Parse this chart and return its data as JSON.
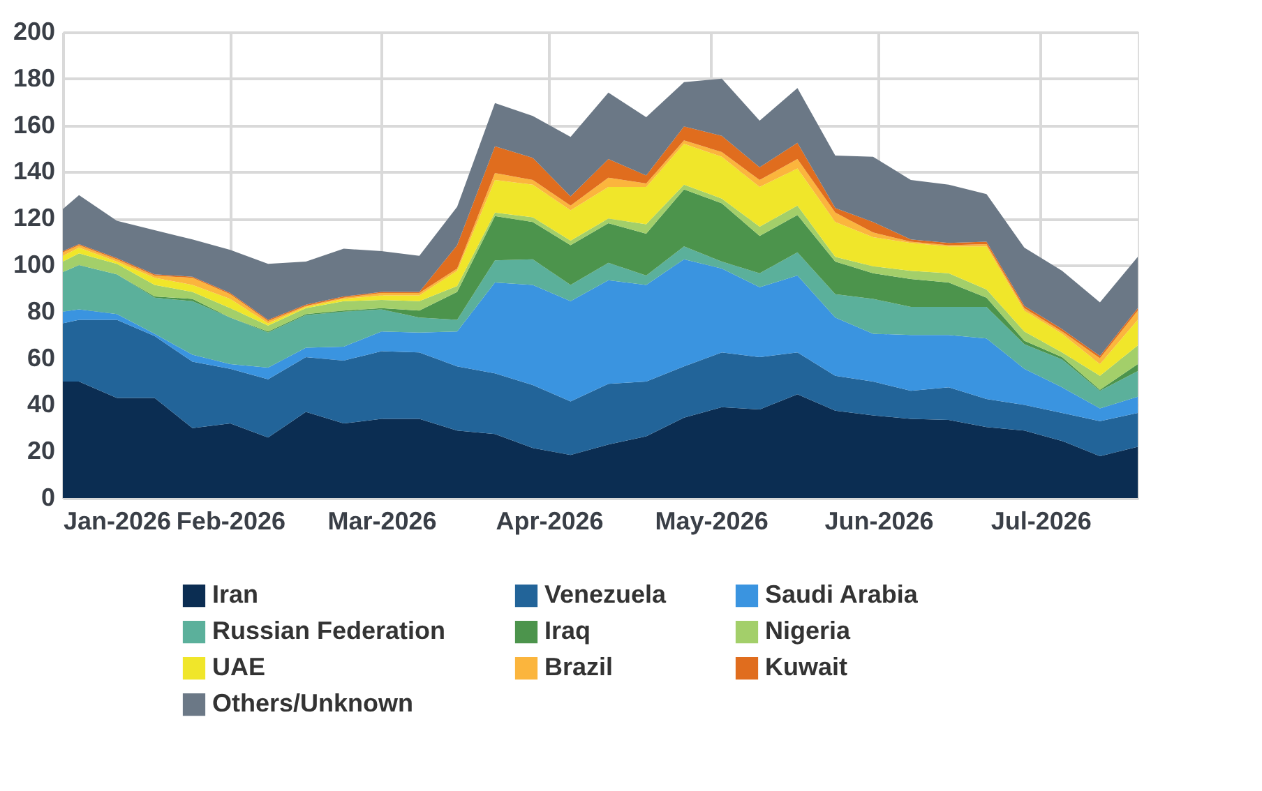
{
  "chart_data": {
    "type": "area",
    "stacked": true,
    "grid": true,
    "legend": "bottom",
    "x": [
      "2026-01-01",
      "2026-01-04",
      "2026-01-11",
      "2026-01-18",
      "2026-01-25",
      "2026-02-01",
      "2026-02-08",
      "2026-02-15",
      "2026-02-22",
      "2026-03-01",
      "2026-03-08",
      "2026-03-15",
      "2026-03-22",
      "2026-03-29",
      "2026-04-05",
      "2026-04-12",
      "2026-04-19",
      "2026-04-26",
      "2026-05-03",
      "2026-05-10",
      "2026-05-17",
      "2026-05-24",
      "2026-05-31",
      "2026-06-07",
      "2026-06-14",
      "2026-06-21",
      "2026-06-28",
      "2026-07-05",
      "2026-07-12",
      "2026-07-19"
    ],
    "xlim": [
      "2026-01-01",
      "2026-07-19"
    ],
    "xticks": [
      {
        "value": "2026-01-01",
        "label": "Jan-2026"
      },
      {
        "value": "2026-02-01",
        "label": "Feb-2026"
      },
      {
        "value": "2026-03-01",
        "label": "Mar-2026"
      },
      {
        "value": "2026-04-01",
        "label": "Apr-2026"
      },
      {
        "value": "2026-05-01",
        "label": "May-2026"
      },
      {
        "value": "2026-06-01",
        "label": "Jun-2026"
      },
      {
        "value": "2026-07-01",
        "label": "Jul-2026"
      }
    ],
    "ylim": [
      0,
      200
    ],
    "yticks": [
      0,
      20,
      40,
      60,
      80,
      100,
      120,
      140,
      160,
      180,
      200
    ],
    "series": [
      {
        "name": "Iran",
        "color": "#0b2d52",
        "values": [
          50,
          50,
          43,
          43,
          30,
          32,
          26,
          37,
          32,
          34,
          34,
          29,
          27.5,
          21.5,
          18.5,
          23,
          26.5,
          34.5,
          39,
          38,
          44.5,
          37.5,
          35.5,
          34,
          33.5,
          30.5,
          29,
          24.5,
          18,
          22
        ]
      },
      {
        "name": "Venezuela",
        "color": "#226499",
        "values": [
          25,
          26.5,
          33.5,
          26.5,
          28.5,
          23.5,
          25,
          23.5,
          27,
          29,
          28.5,
          27.5,
          26,
          27,
          23,
          26,
          23.5,
          22,
          23.5,
          22.5,
          18,
          15,
          14.5,
          12,
          14,
          12,
          11,
          12,
          15,
          14.5
        ]
      },
      {
        "name": "Saudi Arabia",
        "color": "#3a94e0",
        "values": [
          5,
          4.5,
          2.5,
          1,
          3,
          2,
          5,
          4,
          6,
          8.5,
          8.5,
          15,
          39,
          43,
          43,
          44.5,
          41.5,
          46,
          36,
          30,
          33,
          25,
          20.5,
          24,
          22.5,
          26,
          15.5,
          11,
          5.5,
          7
        ]
      },
      {
        "name": "Russian Federation",
        "color": "#5bb09b",
        "values": [
          17,
          19,
          17,
          15.5,
          23,
          20,
          15,
          14,
          15,
          9.5,
          6.5,
          5,
          9.5,
          11,
          7,
          7.5,
          4,
          5.5,
          3,
          6,
          10,
          10,
          15,
          12,
          12,
          13.5,
          10.5,
          12,
          7.5,
          11
        ]
      },
      {
        "name": "Iraq",
        "color": "#4c944c",
        "values": [
          0,
          0,
          0,
          0.5,
          1,
          0,
          0.5,
          0.5,
          0.5,
          0.5,
          3,
          12,
          19,
          16,
          17,
          17,
          18,
          24.5,
          25,
          16,
          16,
          14,
          11,
          12,
          10.5,
          4,
          1.5,
          1,
          0.5,
          3
        ]
      },
      {
        "name": "Nigeria",
        "color": "#a3cf6a",
        "values": [
          4.5,
          5,
          4.5,
          5,
          3,
          4,
          2.5,
          2.5,
          4,
          3.5,
          4,
          2.5,
          1.5,
          2,
          2,
          2,
          4,
          2,
          2,
          4,
          4,
          2,
          3,
          3.5,
          4,
          3.5,
          4,
          2,
          6,
          8
        ]
      },
      {
        "name": "UAE",
        "color": "#f0e62a",
        "values": [
          2.5,
          2.5,
          1,
          3,
          3,
          4,
          1,
          0.5,
          1,
          2,
          2.5,
          6.5,
          14,
          14,
          13,
          13.5,
          16,
          17.5,
          18,
          17,
          16,
          15,
          12.5,
          12,
          11.5,
          18.5,
          9,
          8,
          5,
          11
        ]
      },
      {
        "name": "Brazil",
        "color": "#fbb53d",
        "values": [
          1.5,
          1,
          1,
          1,
          3,
          2,
          1,
          0.5,
          0.5,
          1,
          1,
          1,
          3,
          2,
          2,
          4,
          1.5,
          1.5,
          2,
          3,
          4,
          4,
          2,
          0.5,
          0.5,
          1,
          1,
          1,
          2.5,
          4
        ]
      },
      {
        "name": "Kuwait",
        "color": "#e06d1e",
        "values": [
          0.5,
          0.5,
          0.5,
          0.5,
          0.5,
          0.5,
          0.5,
          0.5,
          0.5,
          0.5,
          0.5,
          10,
          11.5,
          9.5,
          4,
          8,
          3.5,
          6,
          7,
          5.5,
          7,
          2,
          4.5,
          1,
          1,
          1,
          1,
          1,
          1,
          1
        ]
      },
      {
        "name": "Others/Unknown",
        "color": "#6b7886",
        "values": [
          18,
          21,
          16,
          19,
          16,
          18.5,
          24,
          18.5,
          20.5,
          17.5,
          15.5,
          16.5,
          18.5,
          18,
          25.5,
          28.5,
          25,
          19,
          24.5,
          20,
          23.5,
          22.5,
          28,
          25.5,
          25,
          20.5,
          25,
          25,
          23,
          22
        ]
      }
    ]
  }
}
